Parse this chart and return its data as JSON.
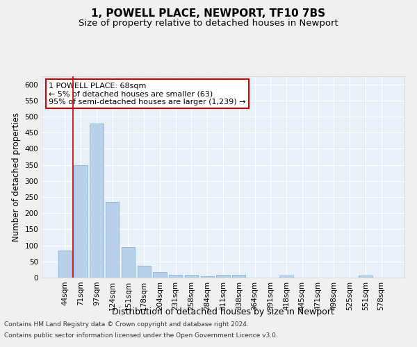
{
  "title1": "1, POWELL PLACE, NEWPORT, TF10 7BS",
  "title2": "Size of property relative to detached houses in Newport",
  "xlabel": "Distribution of detached houses by size in Newport",
  "ylabel": "Number of detached properties",
  "bar_labels": [
    "44sqm",
    "71sqm",
    "97sqm",
    "124sqm",
    "151sqm",
    "178sqm",
    "204sqm",
    "231sqm",
    "258sqm",
    "284sqm",
    "311sqm",
    "338sqm",
    "364sqm",
    "391sqm",
    "418sqm",
    "445sqm",
    "471sqm",
    "498sqm",
    "525sqm",
    "551sqm",
    "578sqm"
  ],
  "bar_values": [
    83,
    350,
    478,
    235,
    95,
    37,
    17,
    8,
    8,
    5,
    8,
    8,
    0,
    0,
    7,
    0,
    0,
    0,
    0,
    7,
    0
  ],
  "bar_color": "#b8d0ea",
  "bar_edgecolor": "#7aabcf",
  "vline_color": "#cc0000",
  "annotation_text": "1 POWELL PLACE: 68sqm\n← 5% of detached houses are smaller (63)\n95% of semi-detached houses are larger (1,239) →",
  "annotation_box_facecolor": "#ffffff",
  "annotation_box_edgecolor": "#cc0000",
  "ylim": [
    0,
    625
  ],
  "yticks": [
    0,
    50,
    100,
    150,
    200,
    250,
    300,
    350,
    400,
    450,
    500,
    550,
    600
  ],
  "footnote1": "Contains HM Land Registry data © Crown copyright and database right 2024.",
  "footnote2": "Contains public sector information licensed under the Open Government Licence v3.0.",
  "fig_facecolor": "#f0f0f0",
  "plot_facecolor": "#e8f0fa",
  "grid_color": "#ffffff",
  "title1_fontsize": 11,
  "title2_fontsize": 9.5,
  "xlabel_fontsize": 9,
  "ylabel_fontsize": 8.5,
  "tick_fontsize": 7.5,
  "annotation_fontsize": 8,
  "footnote_fontsize": 6.5
}
